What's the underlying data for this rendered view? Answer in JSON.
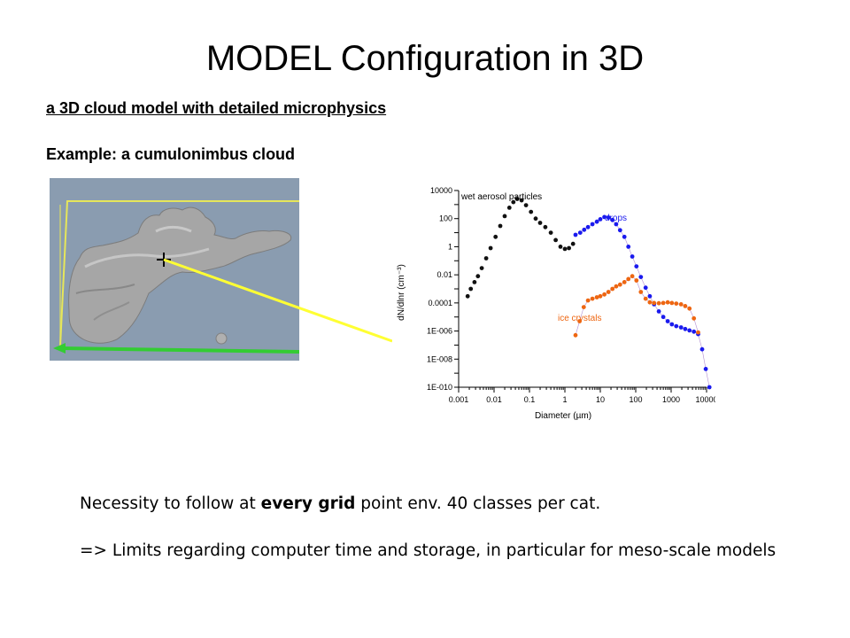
{
  "slide": {
    "title": "MODEL Configuration in 3D",
    "subtitle": "a 3D cloud model with detailed microphysics",
    "example": "Example: a cumulonimbus cloud",
    "para1": {
      "before": "Necessity to follow at ",
      "bold": "every grid",
      "after": " point env. 40 classes per cat."
    },
    "para2": "=> Limits regarding computer time and storage, in particular for meso-scale models"
  },
  "colors": {
    "connector": "#ffff33",
    "cloud_bg": "#8a9cb0",
    "axis_green": "#33cc33"
  },
  "chart_data": {
    "type": "scatter",
    "xscale": "log",
    "yscale": "log",
    "xlabel": "Diameter (µm)",
    "ylabel": "dN/dlnr (cm⁻³)",
    "xlim": [
      0.001,
      10000
    ],
    "ylim": [
      1e-10,
      10000
    ],
    "xticks": [
      "0.001",
      "0.01",
      "0.1",
      "1",
      "10",
      "100",
      "1000",
      "10000"
    ],
    "yticks": [
      "10000",
      "100",
      "1",
      "0.01",
      "0.0001",
      "1E-006",
      "1E-008",
      "1E-010"
    ],
    "series": [
      {
        "name": "wet aerosol particles",
        "color": "#111111",
        "x": [
          0.0018,
          0.0022,
          0.0028,
          0.0035,
          0.0045,
          0.006,
          0.008,
          0.011,
          0.015,
          0.02,
          0.027,
          0.035,
          0.045,
          0.06,
          0.08,
          0.11,
          0.15,
          0.2,
          0.28,
          0.4,
          0.55,
          0.75,
          1.0,
          1.3,
          1.7
        ],
        "y": [
          0.0003,
          0.001,
          0.003,
          0.008,
          0.03,
          0.15,
          0.8,
          5,
          30,
          150,
          600,
          1500,
          2500,
          2000,
          900,
          300,
          100,
          50,
          25,
          10,
          3,
          1,
          0.7,
          0.8,
          1.6
        ]
      },
      {
        "name": "drops",
        "color": "#1a1aee",
        "x": [
          2,
          2.7,
          3.5,
          4.5,
          6,
          8,
          10,
          13,
          17,
          22,
          28,
          36,
          48,
          62,
          80,
          105,
          140,
          190,
          250,
          330,
          450,
          600,
          800,
          1050,
          1400,
          1900,
          2500,
          3300,
          4400,
          5800,
          7500,
          9500,
          12000
        ],
        "y": [
          7,
          10,
          16,
          25,
          40,
          60,
          90,
          130,
          120,
          80,
          40,
          15,
          5,
          1,
          0.2,
          0.04,
          0.007,
          0.0012,
          0.0003,
          8e-05,
          2.5e-05,
          1e-05,
          5e-06,
          3e-06,
          2.2e-06,
          1.8e-06,
          1.4e-06,
          1.1e-06,
          9e-07,
          6e-07,
          5e-08,
          2e-09,
          1e-10
        ]
      },
      {
        "name": "ice crystals",
        "color": "#ee6611",
        "x": [
          2,
          2.6,
          3.4,
          4.5,
          6,
          8,
          10,
          13,
          17,
          22,
          28,
          36,
          48,
          62,
          80,
          105,
          140,
          190,
          250,
          330,
          450,
          600,
          800,
          1050,
          1400,
          1900,
          2500,
          3300,
          4400,
          5800
        ],
        "y": [
          5e-07,
          5e-06,
          5e-05,
          0.00015,
          0.0002,
          0.00025,
          0.0003,
          0.0004,
          0.0006,
          0.001,
          0.0015,
          0.002,
          0.003,
          0.005,
          0.008,
          0.004,
          0.0006,
          0.0002,
          0.00011,
          0.0001,
          9.5e-05,
          0.0001,
          0.00011,
          0.0001,
          9e-05,
          8e-05,
          6e-05,
          4e-05,
          8e-06,
          8e-07
        ]
      }
    ],
    "annotations": [
      {
        "text": "wet aerosol particles"
      },
      {
        "text": "drops"
      },
      {
        "text": "ice crystals"
      }
    ]
  }
}
